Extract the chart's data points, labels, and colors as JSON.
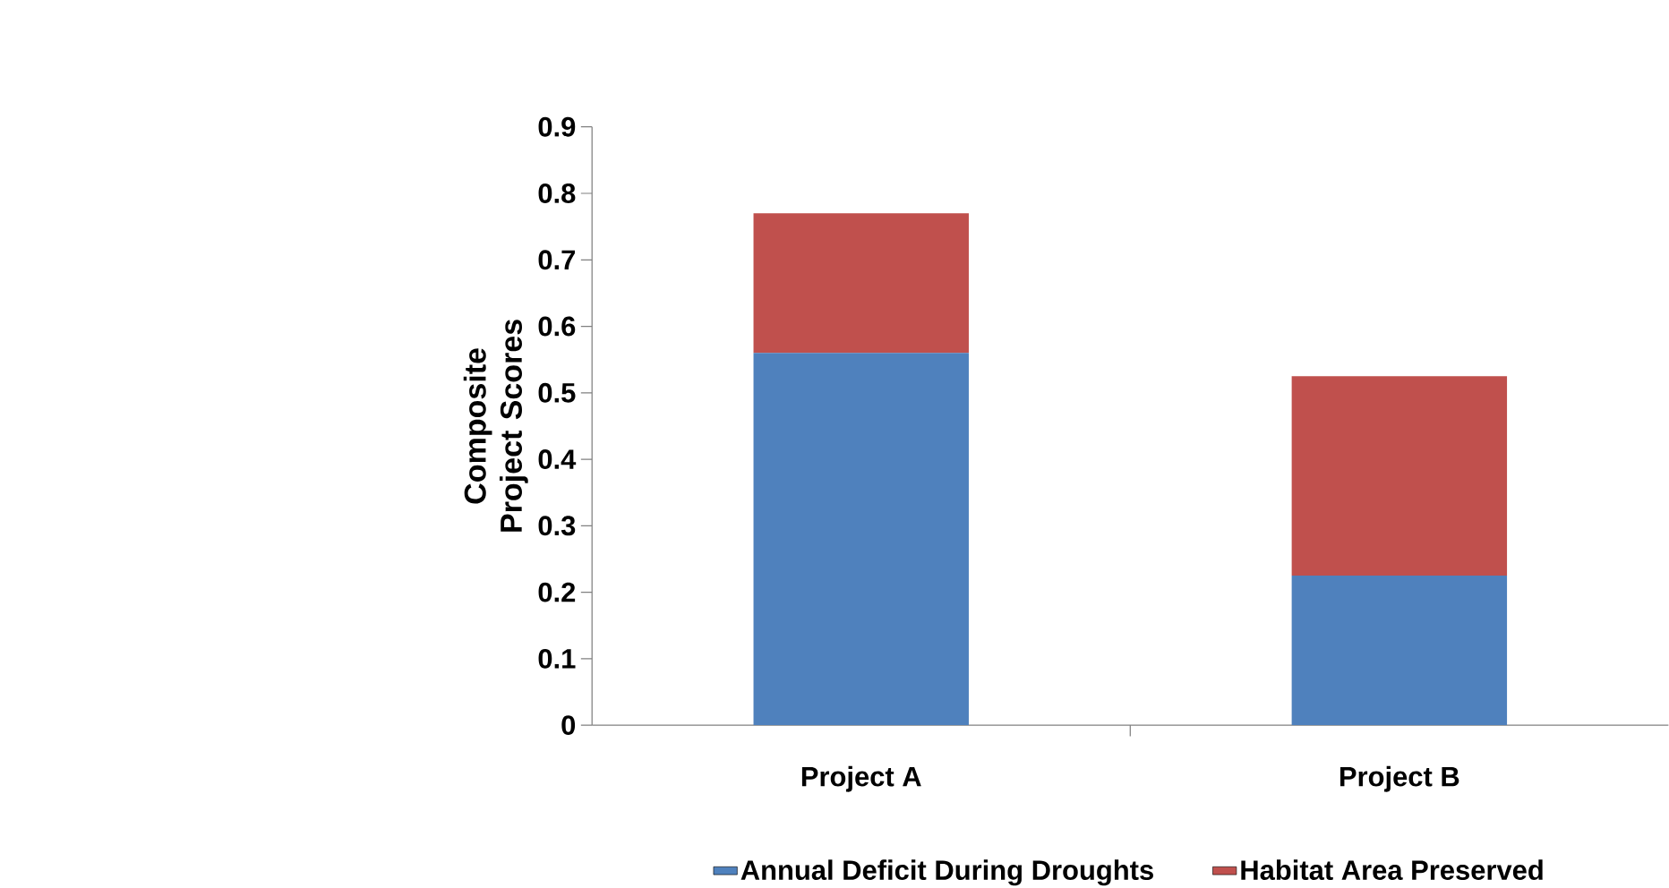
{
  "chart_data": {
    "type": "bar",
    "stacked": true,
    "ylabel": "Composite Project Scores",
    "categories": [
      "Project A",
      "Project B"
    ],
    "series": [
      {
        "name": "Annual Deficit During Droughts",
        "color": "#4f81bd",
        "values": [
          0.56,
          0.225
        ]
      },
      {
        "name": "Habitat Area Preserved",
        "color": "#c0504d",
        "values": [
          0.21,
          0.3
        ]
      }
    ],
    "ylim": [
      0,
      0.9
    ],
    "yticks": [
      0,
      0.1,
      0.2,
      0.3,
      0.4,
      0.5,
      0.6,
      0.7,
      0.8,
      0.9
    ],
    "legend": "bottom"
  }
}
